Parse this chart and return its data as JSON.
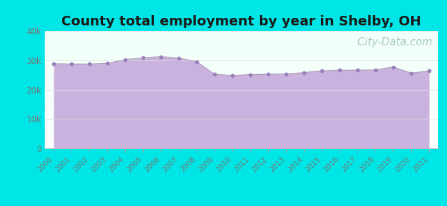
{
  "title": "County total employment by year in Shelby, OH",
  "years": [
    2000,
    2001,
    2002,
    2003,
    2004,
    2005,
    2006,
    2007,
    2008,
    2009,
    2010,
    2011,
    2012,
    2013,
    2014,
    2015,
    2016,
    2017,
    2018,
    2019,
    2020,
    2021
  ],
  "values": [
    28800,
    28700,
    28700,
    28900,
    30200,
    30800,
    31200,
    30700,
    29500,
    25200,
    24800,
    25100,
    25200,
    25300,
    25800,
    26400,
    26600,
    26600,
    26700,
    27700,
    25600,
    26400
  ],
  "ylim": [
    0,
    40000
  ],
  "yticks": [
    0,
    10000,
    20000,
    30000,
    40000
  ],
  "ytick_labels": [
    "0",
    "10k",
    "20k",
    "30k",
    "40k"
  ],
  "line_color": "#b09ec0",
  "fill_color": "#c9b3de",
  "fill_alpha": 1.0,
  "dot_color": "#9b80bb",
  "dot_size": 18,
  "background_outer": "#00e5e5",
  "background_inner_top": "#f0fff8",
  "background_inner_bottom": "#ffffff",
  "title_fontsize": 14,
  "title_fontweight": "bold",
  "title_color": "#1a1a1a",
  "watermark_text": "  City-Data.com",
  "watermark_color": "#aac8cc",
  "watermark_fontsize": 11,
  "grid_color": "#dddddd",
  "tick_color": "#777777",
  "xlabel_fontsize": 7.5,
  "ylabel_fontsize": 8.5
}
